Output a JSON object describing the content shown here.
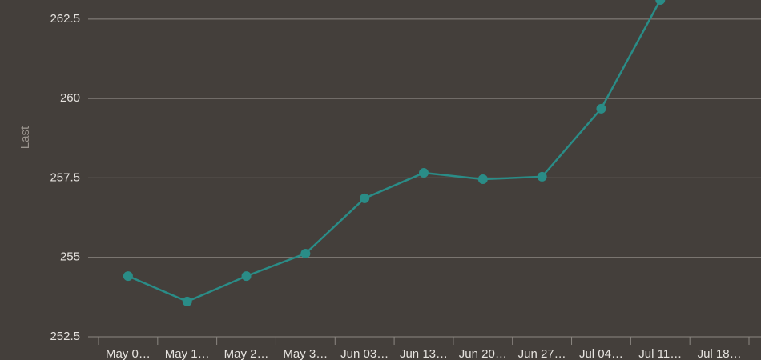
{
  "chart_data": {
    "type": "line",
    "y_label": "Last",
    "categories": [
      "May 0…",
      "May 1…",
      "May 2…",
      "May 3…",
      "Jun 03…",
      "Jun 13…",
      "Jun 20…",
      "Jun 27…",
      "Jul 04…",
      "Jul 11…",
      "Jul 18…"
    ],
    "series": [
      {
        "name": "Last",
        "color": "#2a8c87",
        "values": [
          254.41,
          253.61,
          254.41,
          255.12,
          256.86,
          257.66,
          257.46,
          257.54,
          259.68,
          263.1,
          null
        ]
      }
    ],
    "ylim": [
      252.5,
      263.1
    ],
    "yticks": [
      252.5,
      255,
      257.5,
      260,
      262.5
    ],
    "grid": true
  }
}
